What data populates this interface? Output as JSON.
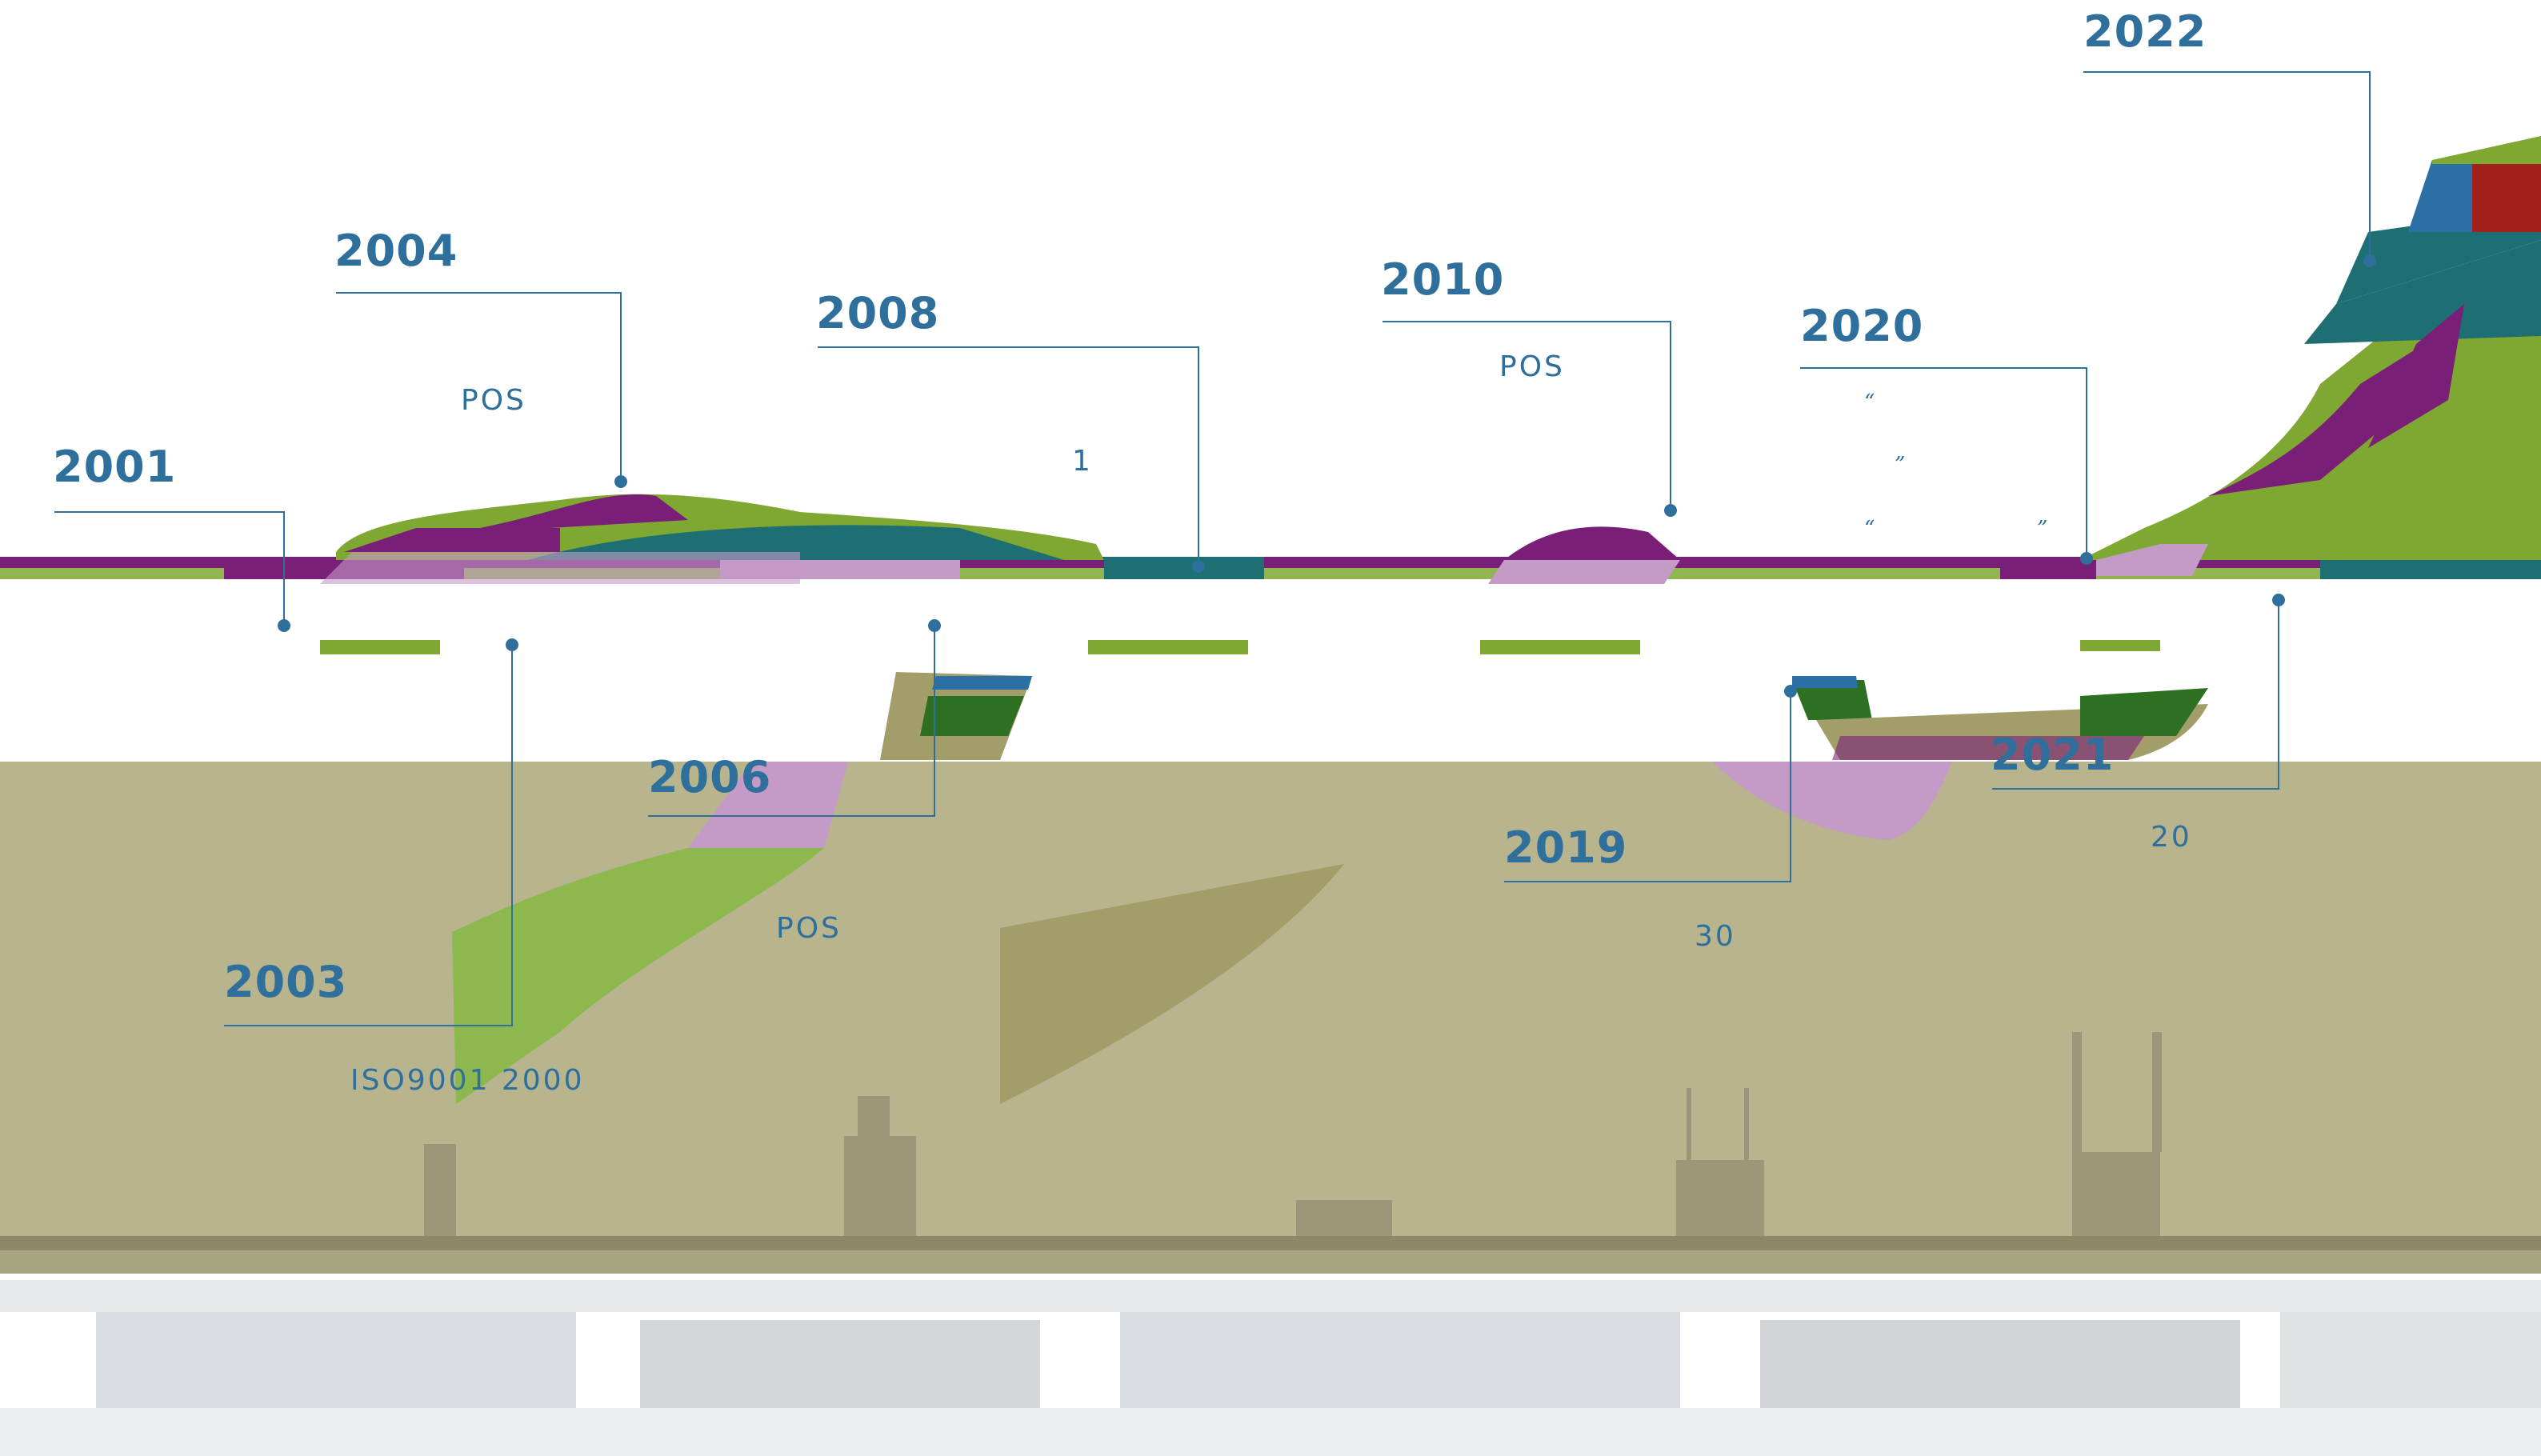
{
  "palette": {
    "label": "#2e6f9b",
    "ground": "#b8b48e",
    "purple": "#7a1f78",
    "lilac": "#c49ac6",
    "green": "#7fa832",
    "lime": "#8cb84e",
    "teal": "#1e6f73",
    "blue": "#2a6fa6",
    "darkgreen": "#2e7021",
    "olive": "#a39d6a",
    "red": "#a3211a",
    "building": "#9c9779"
  },
  "milestones": [
    {
      "year": "2001"
    },
    {
      "year": "2003",
      "note": "ISO9001 2000"
    },
    {
      "year": "2004",
      "note": "POS"
    },
    {
      "year": "2006",
      "note": "POS"
    },
    {
      "year": "2008",
      "note": "1"
    },
    {
      "year": "2010",
      "note": "POS"
    },
    {
      "year": "2019",
      "note": "30"
    },
    {
      "year": "2020"
    },
    {
      "year": "2021",
      "note": "20"
    },
    {
      "year": "2022"
    }
  ],
  "quote_marks": [
    "“",
    "”",
    "“",
    "”"
  ]
}
